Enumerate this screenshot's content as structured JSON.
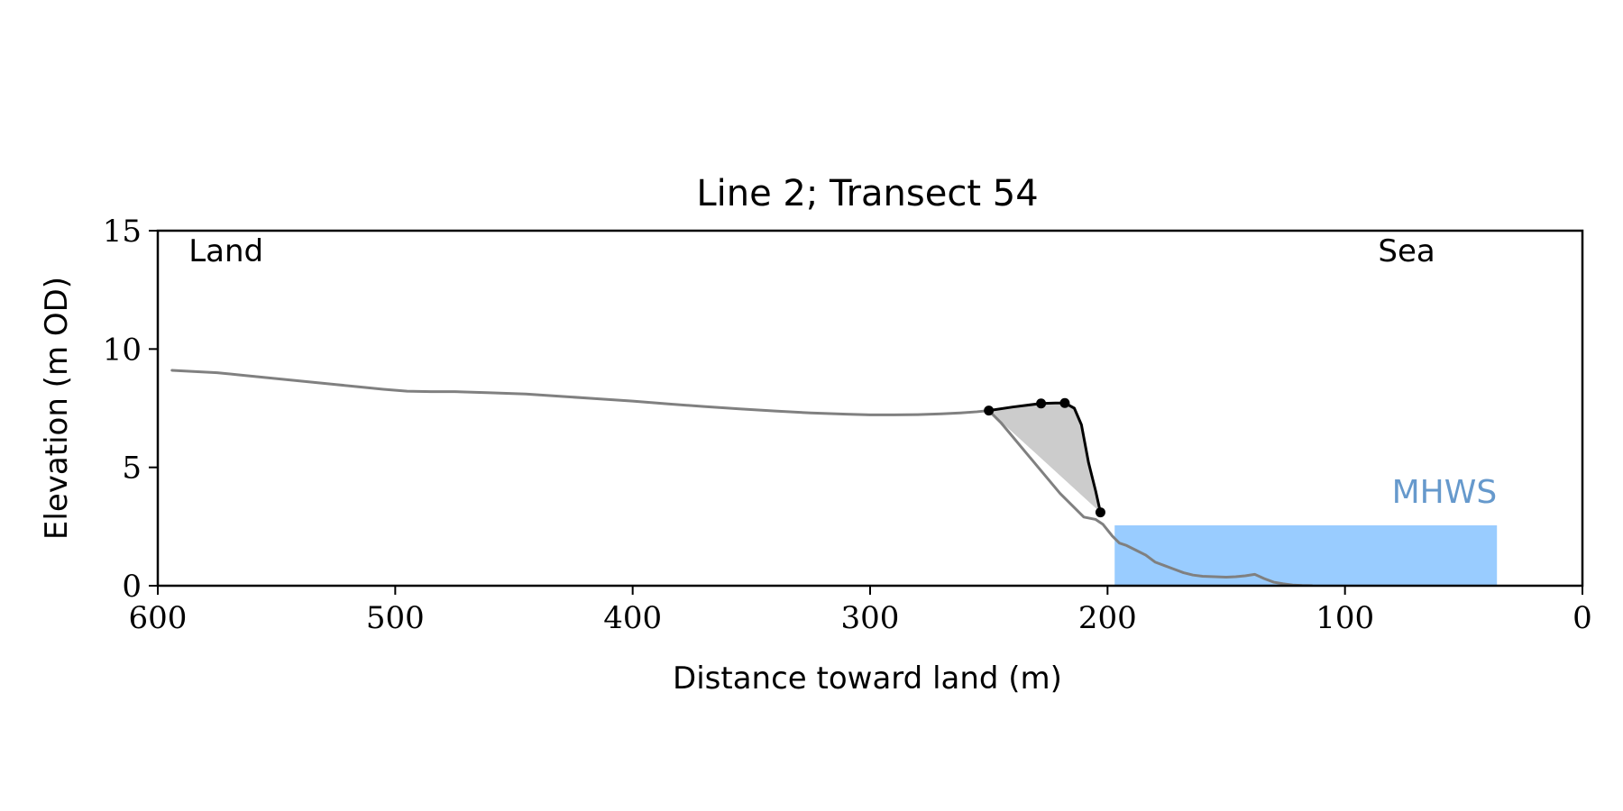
{
  "chart_data": {
    "type": "line",
    "title": "Line 2; Transect 54",
    "xlabel": "Distance toward land (m)",
    "ylabel": "Elevation (m OD)",
    "xlim": [
      600,
      0
    ],
    "ylim": [
      0,
      15
    ],
    "x_ticks": [
      600,
      500,
      400,
      300,
      200,
      100,
      0
    ],
    "y_ticks": [
      0,
      5,
      10,
      15
    ],
    "grid": false,
    "legend": "none",
    "annotations": [
      {
        "text": "Land",
        "x": 587,
        "y": 13.7
      },
      {
        "text": "Sea",
        "x": 62,
        "y": 13.7
      },
      {
        "text": "MHWS",
        "x": 36,
        "y": 3.5
      }
    ],
    "series": [
      {
        "role": "ground-profile",
        "color": "#808080",
        "x": [
          594,
          585,
          575,
          565,
          555,
          545,
          535,
          525,
          515,
          505,
          495,
          485,
          475,
          460,
          445,
          430,
          415,
          400,
          385,
          370,
          355,
          340,
          325,
          310,
          300,
          290,
          280,
          270,
          262,
          255,
          250,
          245,
          240,
          235,
          230,
          225,
          220,
          215,
          210,
          205,
          202,
          198,
          195,
          192,
          188,
          184,
          180,
          176,
          172,
          168,
          164,
          160,
          155,
          150,
          146,
          142,
          138,
          134,
          130,
          126,
          122,
          118,
          114
        ],
        "y": [
          9.1,
          9.05,
          9.0,
          8.9,
          8.8,
          8.7,
          8.6,
          8.5,
          8.4,
          8.3,
          8.22,
          8.2,
          8.2,
          8.15,
          8.1,
          8.0,
          7.9,
          7.8,
          7.68,
          7.57,
          7.47,
          7.38,
          7.3,
          7.25,
          7.22,
          7.22,
          7.23,
          7.26,
          7.3,
          7.35,
          7.4,
          6.9,
          6.3,
          5.7,
          5.1,
          4.5,
          3.9,
          3.4,
          2.9,
          2.8,
          2.6,
          2.1,
          1.8,
          1.7,
          1.5,
          1.3,
          1.0,
          0.85,
          0.7,
          0.55,
          0.45,
          0.4,
          0.38,
          0.36,
          0.38,
          0.42,
          0.48,
          0.3,
          0.15,
          0.08,
          0.03,
          0.01,
          0.0
        ]
      },
      {
        "role": "dune-profile",
        "color": "#000000",
        "x": [
          250,
          240,
          228,
          222,
          218,
          214,
          211,
          208,
          205,
          203
        ],
        "y": [
          7.4,
          7.55,
          7.7,
          7.72,
          7.72,
          7.5,
          6.8,
          5.2,
          4.0,
          3.1
        ]
      },
      {
        "role": "profile-markers",
        "color": "#000000",
        "x": [
          250,
          228,
          218,
          203
        ],
        "y": [
          7.4,
          7.7,
          7.72,
          3.1
        ]
      }
    ],
    "shaded_region": {
      "color": "#cccccc",
      "x": [
        250,
        240,
        228,
        222,
        218,
        214,
        211,
        208,
        205,
        203,
        250
      ],
      "y": [
        7.4,
        7.55,
        7.7,
        7.72,
        7.72,
        7.5,
        6.8,
        5.2,
        4.0,
        3.1,
        7.4
      ]
    },
    "mhws": {
      "label": "MHWS",
      "elevation": 2.55,
      "x_range": [
        197,
        36
      ],
      "fill_color": "#99ccff",
      "label_color": "#6699cc"
    }
  }
}
